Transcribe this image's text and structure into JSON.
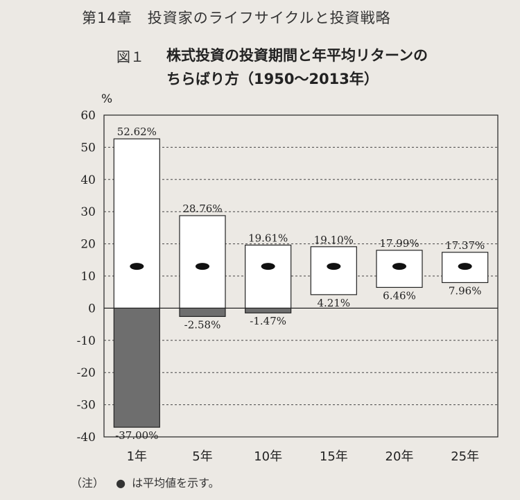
{
  "header": {
    "chapter": "第14章　投資家のライフサイクルと投資戦略",
    "figure_label": "図１",
    "title_line1": "株式投資の投資期間と年平均リターンの",
    "title_line2": "ちらばり方（1950〜2013年）"
  },
  "note": {
    "prefix": "（注）",
    "dot": "●",
    "text": "は平均値を示す。"
  },
  "colors": {
    "background": "#ece9e4",
    "box_fill": "#ffffff",
    "negative_fill": "#6e6e6e",
    "mean_dot": "#111111",
    "axis": "#222222"
  },
  "chart_data": {
    "type": "range-bar",
    "ylabel": "%",
    "ylim": [
      -40,
      60
    ],
    "yticks": [
      60,
      50,
      40,
      30,
      20,
      10,
      0,
      -10,
      -20,
      -30,
      -40
    ],
    "grid": "dashed horizontal",
    "categories": [
      "1年",
      "5年",
      "10年",
      "15年",
      "20年",
      "25年"
    ],
    "max": [
      52.62,
      28.76,
      19.61,
      19.1,
      17.99,
      17.37
    ],
    "min": [
      -37.0,
      -2.58,
      -1.47,
      4.21,
      6.46,
      7.96
    ],
    "mean": [
      13,
      13,
      13,
      13,
      13,
      13
    ],
    "max_labels": [
      "52.62%",
      "28.76%",
      "19.61%",
      "19.10%",
      "17.99%",
      "17.37%"
    ],
    "min_labels": [
      "-37.00%",
      "-2.58%",
      "-1.47%",
      "4.21%",
      "6.46%",
      "7.96%"
    ]
  }
}
